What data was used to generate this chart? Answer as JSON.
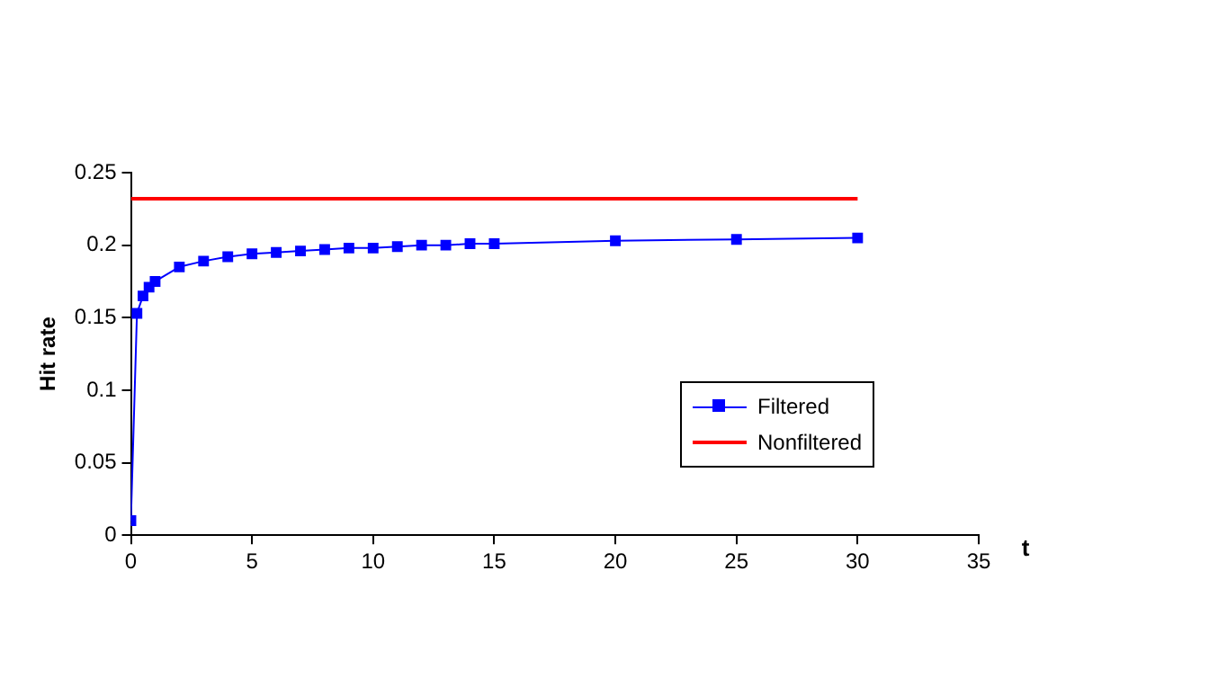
{
  "chart_data": {
    "type": "line",
    "xlabel": "t",
    "ylabel": "Hit rate",
    "xlim": [
      0,
      35
    ],
    "xticks": [
      0,
      5,
      10,
      15,
      20,
      25,
      30,
      35
    ],
    "ylim": [
      0,
      0.25
    ],
    "yticks": [
      0,
      0.05,
      0.1,
      0.15,
      0.2,
      0.25
    ],
    "grid": false,
    "legend": "right",
    "marker": "square",
    "series": [
      {
        "name": "Filtered",
        "color": "#0000ff",
        "x": [
          0,
          0.25,
          0.5,
          0.75,
          1,
          2,
          3,
          4,
          5,
          6,
          7,
          8,
          9,
          10,
          11,
          12,
          13,
          14,
          15,
          20,
          25,
          30
        ],
        "values": [
          0.01,
          0.153,
          0.165,
          0.171,
          0.175,
          0.185,
          0.189,
          0.192,
          0.194,
          0.195,
          0.196,
          0.197,
          0.198,
          0.198,
          0.199,
          0.2,
          0.2,
          0.201,
          0.201,
          0.203,
          0.204,
          0.205
        ]
      },
      {
        "name": "Nonfiltered",
        "color": "#ff0000",
        "marker": "none",
        "x": [
          0,
          30
        ],
        "values": [
          0.232,
          0.232
        ]
      }
    ]
  }
}
